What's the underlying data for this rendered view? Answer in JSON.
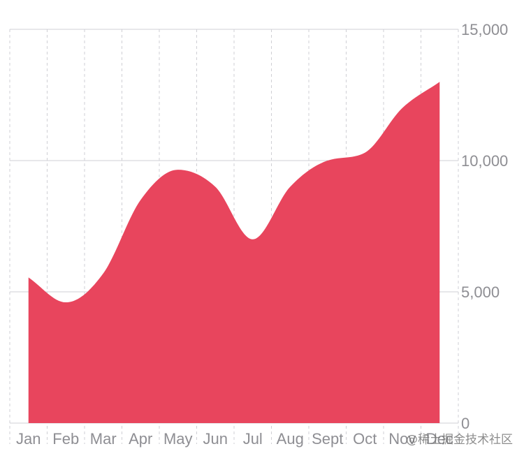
{
  "chart_data": {
    "type": "area",
    "categories": [
      "Jan",
      "Feb",
      "Mar",
      "Apr",
      "May",
      "Jun",
      "Jul",
      "Aug",
      "Sept",
      "Oct",
      "Nov",
      "Dec"
    ],
    "values": [
      5550,
      4600,
      5700,
      8500,
      9650,
      9000,
      7000,
      9000,
      10000,
      10300,
      12000,
      13000
    ],
    "ylim": [
      0,
      15000
    ],
    "yticks": [
      0,
      5000,
      10000,
      15000
    ],
    "ytick_labels": [
      "0",
      "5,000",
      "10,000",
      "15,000"
    ],
    "y_axis_position": "right",
    "grid": {
      "horizontal": "solid",
      "vertical": "dashed"
    },
    "fill_color": "#E8455D",
    "grid_color": "#cfcfd4",
    "label_color": "#8e8e93"
  },
  "watermark": "@稀土掘金技术社区"
}
